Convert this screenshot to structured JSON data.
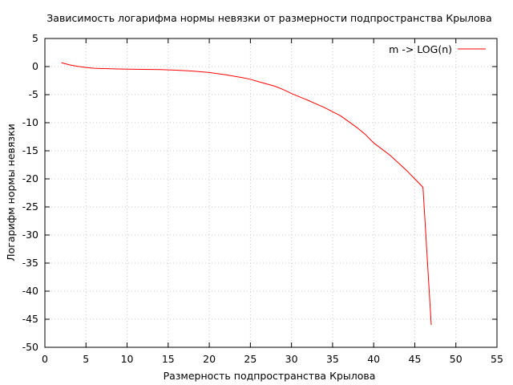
{
  "chart_data": {
    "type": "line",
    "title": "Зависимость логарифма нормы невязки от размерности подпространства Крылова",
    "xlabel": "Размерность подпространства Крылова",
    "ylabel": "Логарифм нормы невязки",
    "xlim": [
      0,
      55
    ],
    "ylim": [
      -50,
      5
    ],
    "xticks": [
      "0",
      "5",
      "10",
      "15",
      "20",
      "25",
      "30",
      "35",
      "40",
      "45",
      "50",
      "55"
    ],
    "yticks": [
      "5",
      "0",
      "-5",
      "-10",
      "-15",
      "-20",
      "-25",
      "-30",
      "-35",
      "-40",
      "-45",
      "-50"
    ],
    "grid": true,
    "legend_position": "top-right",
    "series": [
      {
        "name": "m -> LOG(n)",
        "color": "#ff0000",
        "x": [
          2,
          3,
          4,
          5,
          6,
          8,
          10,
          12,
          14,
          16,
          18,
          20,
          22,
          24,
          25,
          26,
          28,
          29,
          30,
          31,
          32,
          34,
          36,
          38,
          39,
          40,
          42,
          44,
          45,
          46,
          47
        ],
        "y": [
          0.7,
          0.3,
          0.05,
          -0.15,
          -0.3,
          -0.4,
          -0.45,
          -0.5,
          -0.55,
          -0.65,
          -0.8,
          -1.05,
          -1.45,
          -1.95,
          -2.25,
          -2.7,
          -3.5,
          -4.1,
          -4.8,
          -5.4,
          -6.0,
          -7.3,
          -8.8,
          -10.9,
          -12.1,
          -13.6,
          -15.8,
          -18.5,
          -20.0,
          -21.5,
          -46.0
        ]
      }
    ]
  }
}
